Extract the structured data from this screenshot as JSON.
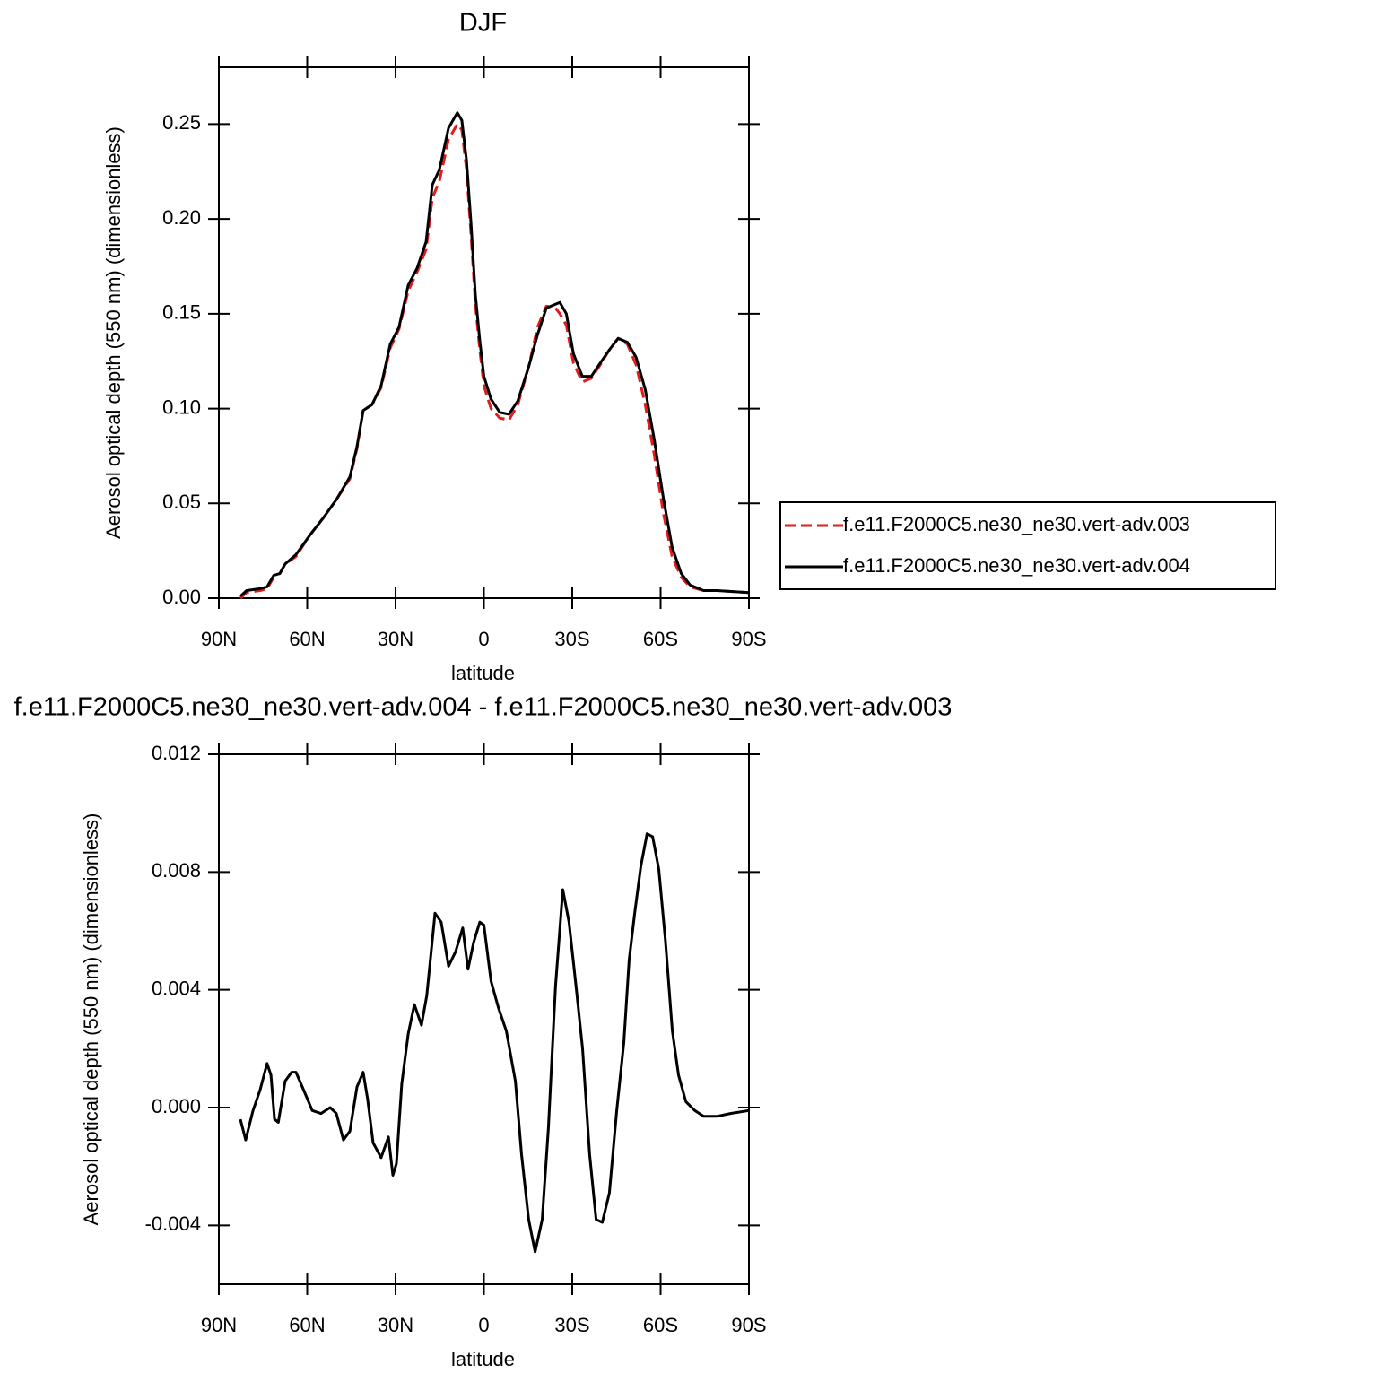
{
  "chart_data": [
    {
      "type": "line",
      "title": "DJF",
      "xlabel": "latitude",
      "ylabel": "Aerosol optical depth (550 nm) (dimensionless)",
      "x": [
        82.7,
        80.6,
        76,
        73.6,
        71.4,
        69.3,
        67.5,
        63.8,
        59.2,
        54.7,
        50.1,
        45.5,
        43.1,
        41,
        38,
        34.9,
        31.8,
        28.8,
        25.7,
        22.7,
        19.6,
        17.5,
        15.1,
        12,
        9,
        7.5,
        5.9,
        4.4,
        2.9,
        1.4,
        0,
        -2.4,
        -5.4,
        -8.5,
        -11.5,
        -15.2,
        -18.2,
        -21.2,
        -24.3,
        -25.8,
        -28,
        -30.4,
        -33.4,
        -36.5,
        -39.5,
        -42.6,
        -45.6,
        -48.7,
        -51.7,
        -54.8,
        -57.8,
        -60.9,
        -63.9,
        -67,
        -70,
        -74.6,
        -79.1,
        -90
      ],
      "series": [
        {
          "name": "f.e11.F2000C5.ne30_ne30.vert-adv.003",
          "color": "#e41a1c",
          "dashed": true,
          "values": [
            0.0,
            0.003,
            0.004,
            0.005,
            0.011,
            0.013,
            0.018,
            0.022,
            0.033,
            0.042,
            0.052,
            0.063,
            0.079,
            0.099,
            0.102,
            0.111,
            0.132,
            0.142,
            0.162,
            0.172,
            0.184,
            0.211,
            0.22,
            0.242,
            0.25,
            0.247,
            0.226,
            0.192,
            0.155,
            0.131,
            0.112,
            0.1,
            0.095,
            0.094,
            0.102,
            0.122,
            0.143,
            0.154,
            0.153,
            0.15,
            0.144,
            0.124,
            0.114,
            0.116,
            0.123,
            0.131,
            0.137,
            0.134,
            0.123,
            0.102,
            0.076,
            0.045,
            0.022,
            0.011,
            0.006,
            0.004,
            0.004,
            0.003
          ]
        },
        {
          "name": "f.e11.F2000C5.ne30_ne30.vert-adv.004",
          "color": "#000000",
          "dashed": false,
          "values": [
            0.001,
            0.004,
            0.005,
            0.006,
            0.012,
            0.013,
            0.018,
            0.023,
            0.033,
            0.042,
            0.052,
            0.064,
            0.08,
            0.099,
            0.102,
            0.112,
            0.134,
            0.143,
            0.165,
            0.174,
            0.188,
            0.218,
            0.226,
            0.248,
            0.256,
            0.252,
            0.231,
            0.198,
            0.16,
            0.136,
            0.117,
            0.105,
            0.098,
            0.097,
            0.104,
            0.122,
            0.139,
            0.153,
            0.155,
            0.156,
            0.15,
            0.129,
            0.117,
            0.117,
            0.124,
            0.131,
            0.137,
            0.135,
            0.127,
            0.11,
            0.084,
            0.053,
            0.027,
            0.013,
            0.007,
            0.004,
            0.004,
            0.003
          ]
        }
      ],
      "xlim": [
        90,
        -90
      ],
      "xticks": [
        {
          "value": 90,
          "label": "90N"
        },
        {
          "value": 60,
          "label": "60N"
        },
        {
          "value": 30,
          "label": "30N"
        },
        0,
        {
          "value": -30,
          "label": "30S"
        },
        {
          "value": -60,
          "label": "60S"
        },
        {
          "value": -90,
          "label": "90S"
        }
      ],
      "ylim": [
        0,
        0.28
      ],
      "yticks": [
        {
          "value": 0,
          "label": "0.00"
        },
        {
          "value": 0.05,
          "label": "0.05"
        },
        {
          "value": 0.1,
          "label": "0.10"
        },
        {
          "value": 0.15,
          "label": "0.15"
        },
        {
          "value": 0.2,
          "label": "0.20"
        },
        {
          "value": 0.25,
          "label": "0.25"
        }
      ],
      "legend": "right"
    },
    {
      "type": "line",
      "title": "f.e11.F2000C5.ne30_ne30.vert-adv.004 - f.e11.F2000C5.ne30_ne30.vert-adv.003",
      "xlabel": "latitude",
      "ylabel": "Aerosol optical depth (550 nm) (dimensionless)",
      "x": [
        82.7,
        80.9,
        78.4,
        76,
        73.6,
        72.3,
        71.1,
        69.8,
        67.5,
        65.3,
        63.8,
        60.8,
        58.3,
        55.3,
        52.2,
        50.1,
        47.7,
        45.5,
        43.1,
        41,
        39.5,
        37.6,
        34.9,
        32.4,
        30.9,
        29.7,
        27.9,
        25.7,
        23.6,
        21.2,
        19.4,
        16.6,
        14.5,
        12,
        9.6,
        7.2,
        5.4,
        3.5,
        1.4,
        0,
        -2.4,
        -4.9,
        -7.6,
        -10.7,
        -12.8,
        -15.2,
        -17.4,
        -19.8,
        -21.9,
        -24.3,
        -26.8,
        -28.9,
        -31.3,
        -33.5,
        -35.9,
        -38.1,
        -40.2,
        -42.6,
        -45.1,
        -47.5,
        -49.3,
        -51.2,
        -53.3,
        -55.4,
        -57.3,
        -59.4,
        -61.6,
        -64,
        -66.1,
        -68.6,
        -71.6,
        -74.6,
        -79.1,
        -83.7,
        -90
      ],
      "series": [
        {
          "color": "#000000",
          "dashed": false,
          "values": [
            -0.0004,
            -0.0011,
            -0.0001,
            0.0006,
            0.0015,
            0.0011,
            -0.0004,
            -0.0005,
            0.0009,
            0.0012,
            0.0012,
            0.0005,
            -0.0001,
            -0.0002,
            0.0,
            -0.0002,
            -0.0011,
            -0.0008,
            0.0007,
            0.0012,
            0.0003,
            -0.0012,
            -0.0017,
            -0.001,
            -0.0023,
            -0.0019,
            0.0008,
            0.0025,
            0.0035,
            0.0028,
            0.0038,
            0.0066,
            0.0063,
            0.0048,
            0.0053,
            0.0061,
            0.0047,
            0.0056,
            0.0063,
            0.0062,
            0.0043,
            0.0034,
            0.0026,
            0.0009,
            -0.0016,
            -0.0038,
            -0.0049,
            -0.0038,
            -0.0007,
            0.0041,
            0.0074,
            0.0063,
            0.0041,
            0.002,
            -0.0016,
            -0.0038,
            -0.0039,
            -0.0029,
            -0.0001,
            0.0022,
            0.005,
            0.0066,
            0.0082,
            0.0093,
            0.0092,
            0.0081,
            0.0057,
            0.0026,
            0.0011,
            0.0002,
            -0.0001,
            -0.0003,
            -0.0003,
            -0.0002,
            -0.0001
          ]
        }
      ],
      "xlim": [
        90,
        -90
      ],
      "xticks": [
        {
          "value": 90,
          "label": "90N"
        },
        {
          "value": 60,
          "label": "60N"
        },
        {
          "value": 30,
          "label": "30N"
        },
        0,
        {
          "value": -30,
          "label": "30S"
        },
        {
          "value": -60,
          "label": "60S"
        },
        {
          "value": -90,
          "label": "90S"
        }
      ],
      "ylim": [
        -0.006,
        0.012
      ],
      "yticks": [
        {
          "value": -0.004,
          "label": "-0.004"
        },
        {
          "value": 0,
          "label": "0.000"
        },
        {
          "value": 0.004,
          "label": "0.004"
        },
        {
          "value": 0.008,
          "label": "0.008"
        },
        {
          "value": 0.012,
          "label": "0.012"
        }
      ]
    }
  ]
}
